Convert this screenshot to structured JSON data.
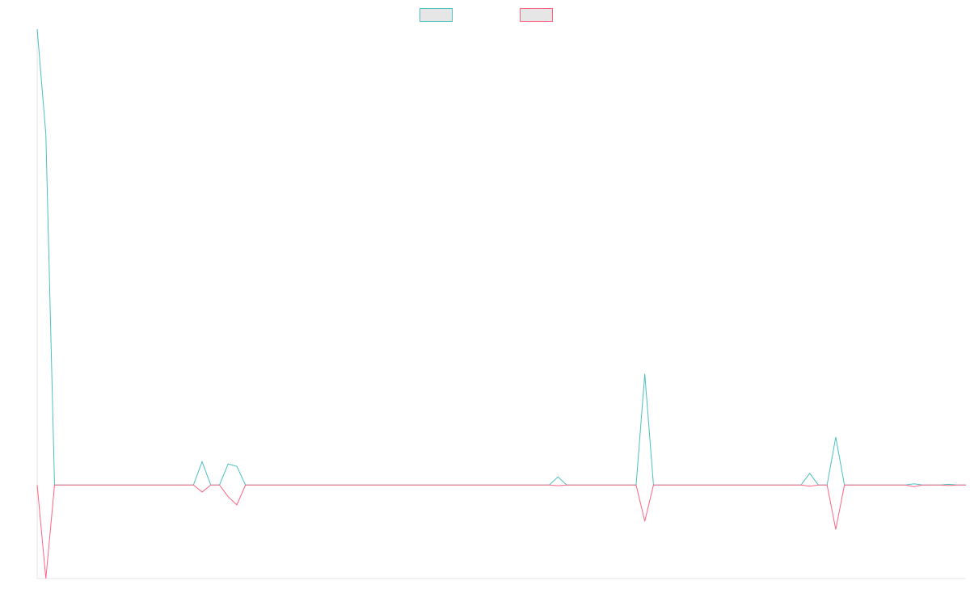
{
  "chart_data": {
    "type": "line",
    "x_count": 108,
    "ylim": [
      -40,
      195
    ],
    "grid": false,
    "legend_position": "top-center",
    "series": [
      {
        "color": "#4bc0c0",
        "fill": "#e6e6e6",
        "values": [
          195,
          150,
          0,
          0,
          0,
          0,
          0,
          0,
          0,
          0,
          0,
          0,
          0,
          0,
          0,
          0,
          0,
          0,
          0,
          10,
          0,
          0,
          9,
          8,
          0,
          0,
          0,
          0,
          0,
          0,
          0,
          0,
          0,
          0,
          0,
          0,
          0,
          0,
          0,
          0,
          0,
          0,
          0,
          0,
          0,
          0,
          0,
          0,
          0,
          0,
          0,
          0,
          0,
          0,
          0,
          0,
          0,
          0,
          0,
          0,
          3.5,
          0,
          0,
          0,
          0,
          0,
          0,
          0,
          0,
          0,
          47.5,
          0,
          0,
          0,
          0,
          0,
          0,
          0,
          0,
          0,
          0,
          0,
          0,
          0,
          0,
          0,
          0,
          0,
          0,
          5,
          0,
          0,
          20.5,
          0,
          0,
          0,
          0,
          0,
          0,
          0,
          0,
          0.5,
          0,
          0,
          0,
          0.3,
          0,
          0
        ]
      },
      {
        "color": "#ff6384",
        "fill": "#e6e6e6",
        "values": [
          0,
          -40,
          0,
          0,
          0,
          0,
          0,
          0,
          0,
          0,
          0,
          0,
          0,
          0,
          0,
          0,
          0,
          0,
          0,
          -3,
          0,
          0,
          -5,
          -8.5,
          0,
          0,
          0,
          0,
          0,
          0,
          0,
          0,
          0,
          0,
          0,
          0,
          0,
          0,
          0,
          0,
          0,
          0,
          0,
          0,
          0,
          0,
          0,
          0,
          0,
          0,
          0,
          0,
          0,
          0,
          0,
          0,
          0,
          0,
          0,
          0,
          -0.3,
          0,
          0,
          0,
          0,
          0,
          0,
          0,
          0,
          0,
          -15.5,
          0,
          0,
          0,
          0,
          0,
          0,
          0,
          0,
          0,
          0,
          0,
          0,
          0,
          0,
          0,
          0,
          0,
          0,
          -0.5,
          0,
          0,
          -19,
          0,
          0,
          0,
          0,
          0,
          0,
          0,
          0,
          -0.7,
          0,
          0,
          0,
          -0.2,
          0,
          0
        ]
      }
    ]
  }
}
